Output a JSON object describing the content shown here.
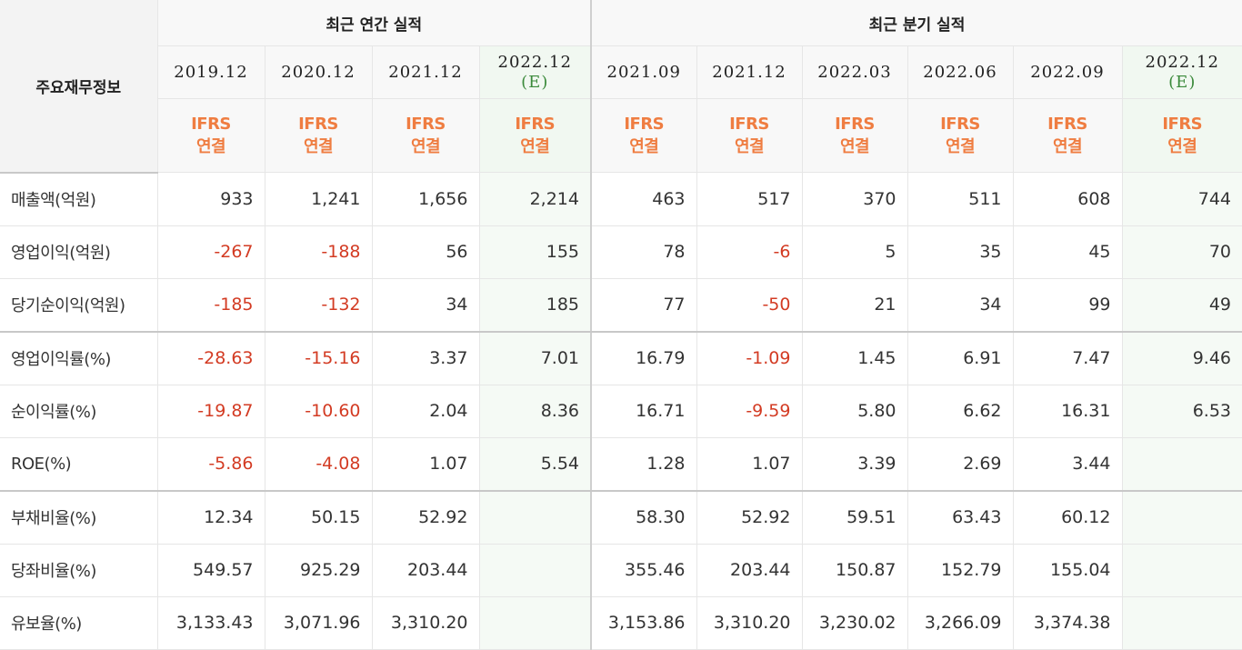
{
  "header": {
    "row_label": "주요재무정보",
    "annual_title": "최근 연간 실적",
    "quarterly_title": "최근 분기 실적"
  },
  "periods": [
    {
      "date": "2019.12",
      "est": "",
      "std": "IFRS",
      "basis": "연결"
    },
    {
      "date": "2020.12",
      "est": "",
      "std": "IFRS",
      "basis": "연결"
    },
    {
      "date": "2021.12",
      "est": "",
      "std": "IFRS",
      "basis": "연결"
    },
    {
      "date": "2022.12",
      "est": "(E)",
      "std": "IFRS",
      "basis": "연결"
    },
    {
      "date": "2021.09",
      "est": "",
      "std": "IFRS",
      "basis": "연결"
    },
    {
      "date": "2021.12",
      "est": "",
      "std": "IFRS",
      "basis": "연결"
    },
    {
      "date": "2022.03",
      "est": "",
      "std": "IFRS",
      "basis": "연결"
    },
    {
      "date": "2022.06",
      "est": "",
      "std": "IFRS",
      "basis": "연결"
    },
    {
      "date": "2022.09",
      "est": "",
      "std": "IFRS",
      "basis": "연결"
    },
    {
      "date": "2022.12",
      "est": "(E)",
      "std": "IFRS",
      "basis": "연결"
    }
  ],
  "rows": [
    {
      "label": "매출액(억원)",
      "values": [
        "933",
        "1,241",
        "1,656",
        "2,214",
        "463",
        "517",
        "370",
        "511",
        "608",
        "744"
      ]
    },
    {
      "label": "영업이익(억원)",
      "values": [
        "-267",
        "-188",
        "56",
        "155",
        "78",
        "-6",
        "5",
        "35",
        "45",
        "70"
      ]
    },
    {
      "label": "당기순이익(억원)",
      "values": [
        "-185",
        "-132",
        "34",
        "185",
        "77",
        "-50",
        "21",
        "34",
        "99",
        "49"
      ]
    },
    {
      "label": "영업이익률(%)",
      "values": [
        "-28.63",
        "-15.16",
        "3.37",
        "7.01",
        "16.79",
        "-1.09",
        "1.45",
        "6.91",
        "7.47",
        "9.46"
      ]
    },
    {
      "label": "순이익률(%)",
      "values": [
        "-19.87",
        "-10.60",
        "2.04",
        "8.36",
        "16.71",
        "-9.59",
        "5.80",
        "6.62",
        "16.31",
        "6.53"
      ]
    },
    {
      "label": "ROE(%)",
      "values": [
        "-5.86",
        "-4.08",
        "1.07",
        "5.54",
        "1.28",
        "1.07",
        "3.39",
        "2.69",
        "3.44",
        ""
      ]
    },
    {
      "label": "부채비율(%)",
      "values": [
        "12.34",
        "50.15",
        "52.92",
        "",
        "58.30",
        "52.92",
        "59.51",
        "63.43",
        "60.12",
        ""
      ]
    },
    {
      "label": "당좌비율(%)",
      "values": [
        "549.57",
        "925.29",
        "203.44",
        "",
        "355.46",
        "203.44",
        "150.87",
        "152.79",
        "155.04",
        ""
      ]
    },
    {
      "label": "유보율(%)",
      "values": [
        "3,133.43",
        "3,071.96",
        "3,310.20",
        "",
        "3,153.86",
        "3,310.20",
        "3,230.02",
        "3,266.09",
        "3,374.38",
        ""
      ]
    }
  ],
  "colors": {
    "negative": "#d33b23",
    "ifrs_label": "#ef7d41",
    "estimate_mark": "#3b8a3b",
    "estimate_bg": "#f5faf5",
    "header_bg": "#f8f8f8"
  }
}
